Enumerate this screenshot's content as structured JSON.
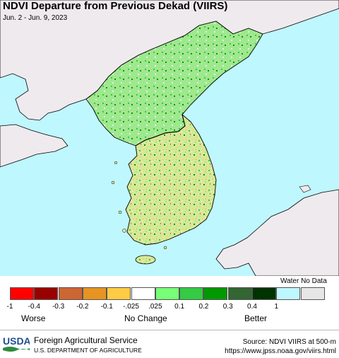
{
  "map": {
    "title": "NDVI Departure from Previous Dekad (VIIRS)",
    "date_range": "Jun. 2 - Jun. 9, 2023"
  },
  "legend": {
    "classes": [
      {
        "color": "#ff0000"
      },
      {
        "color": "#990000"
      },
      {
        "color": "#cc6633"
      },
      {
        "color": "#e69422"
      },
      {
        "color": "#ffcc44"
      },
      {
        "color": "#ffffff"
      },
      {
        "color": "#77ff77"
      },
      {
        "color": "#33cc44"
      },
      {
        "color": "#009900"
      },
      {
        "color": "#336633"
      },
      {
        "color": "#003300"
      },
      {
        "color": "#bff7ff"
      },
      {
        "color": "#e6e6e6"
      }
    ],
    "ticks": [
      "-1",
      "-0.4",
      "-0.3",
      "-0.2",
      "-0.1",
      "-.025",
      ".025",
      "0.1",
      "0.2",
      "0.3",
      "0.4",
      "1"
    ],
    "water_nodata_label": "Water No Data",
    "worse_label": "Worse",
    "no_change_label": "No Change",
    "better_label": "Better"
  },
  "footer": {
    "agency": "Foreign Agricultural Service",
    "department": "U.S. DEPARTMENT OF AGRICULTURE",
    "logo_text": "USDA",
    "source_line1": "Source: NDVI VIIRS at 500-m",
    "source_line2": "https://www.jpss.noaa.gov/viirs.html"
  },
  "colors": {
    "water": "#bff7ff",
    "foreign_land": "#eeeaee",
    "usda_blue": "#1d4f91",
    "usda_green": "#2e8b3e"
  }
}
